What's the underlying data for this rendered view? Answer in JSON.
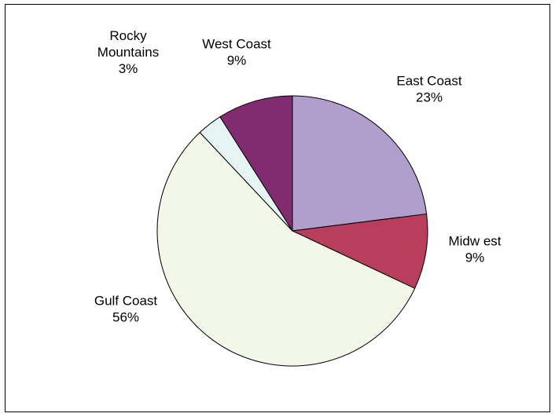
{
  "chart_data": {
    "type": "pie",
    "title": "",
    "slices": [
      {
        "label": "East Coast",
        "label_lines": [
          "East Coast"
        ],
        "value": 23,
        "value_label": "23%",
        "color": "#B09FCC"
      },
      {
        "label": "Midwest",
        "label_lines": [
          "Midw est"
        ],
        "value": 9,
        "value_label": "9%",
        "color": "#B93D5C"
      },
      {
        "label": "Gulf Coast",
        "label_lines": [
          "Gulf Coast"
        ],
        "value": 56,
        "value_label": "56%",
        "color": "#F3F7EA"
      },
      {
        "label": "Rocky Mountains",
        "label_lines": [
          "Rocky",
          "Mountains"
        ],
        "value": 3,
        "value_label": "3%",
        "color": "#E6F5F3"
      },
      {
        "label": "West Coast",
        "label_lines": [
          "West Coast"
        ],
        "value": 9,
        "value_label": "9%",
        "color": "#832B70"
      }
    ],
    "start_angle_deg": 0,
    "direction": "clockwise",
    "legend": "none",
    "data_labels": "category-and-percent-outside"
  }
}
